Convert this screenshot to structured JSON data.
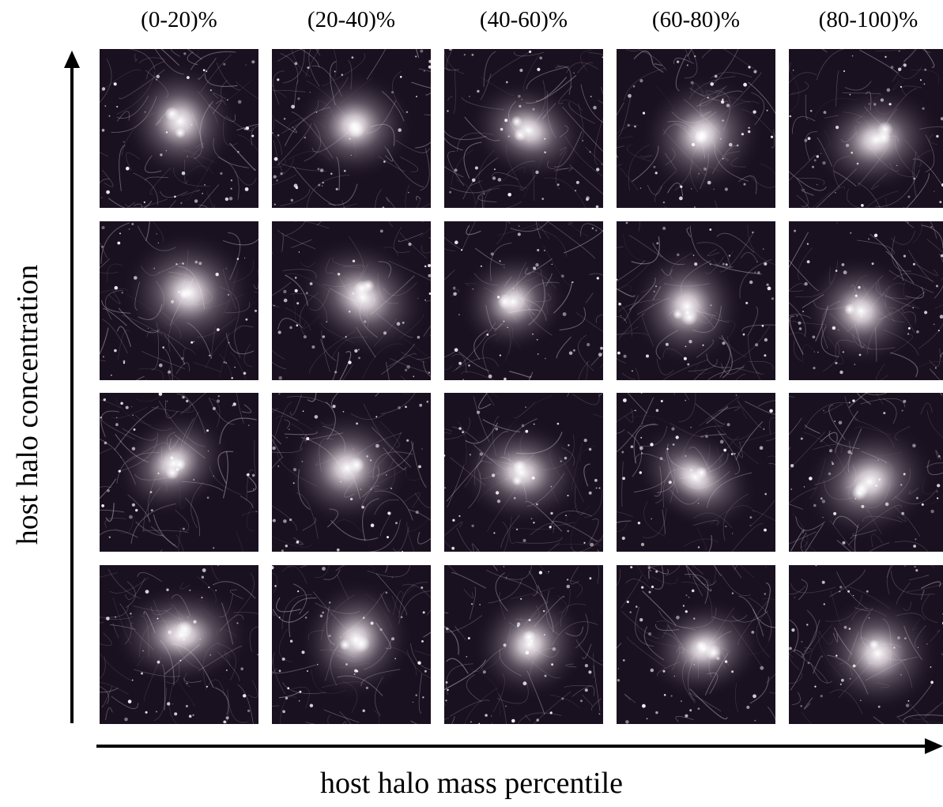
{
  "figure": {
    "columns": [
      "(0-20)%",
      "(20-40)%",
      "(40-60)%",
      "(60-80)%",
      "(80-100)%"
    ],
    "rows": 4,
    "x_axis_title": "host halo mass percentile",
    "y_axis_title": "host halo concentration"
  },
  "colors": {
    "panel_background": "#1a1120",
    "halo_glow": "#e8dfe6",
    "filament": "#cbbfcb",
    "axis": "#000000"
  }
}
